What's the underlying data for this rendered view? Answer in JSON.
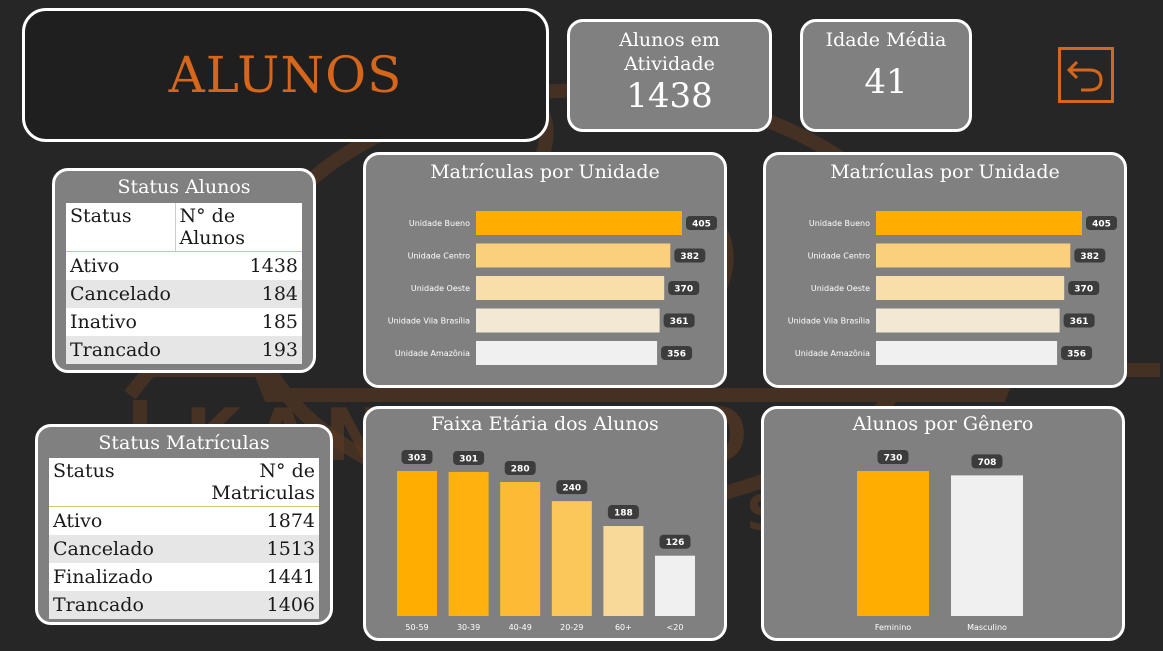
{
  "page": {
    "title": "ALUNOS"
  },
  "kpis": {
    "active_students": {
      "label": "Alunos em Atividade",
      "value": "1438"
    },
    "avg_age": {
      "label": "Idade Média",
      "value": "41"
    }
  },
  "status_alunos": {
    "title": "Status Alunos",
    "headers": [
      "Status",
      "N° de Alunos"
    ],
    "rows": [
      {
        "status": "Ativo",
        "count": "1438"
      },
      {
        "status": "Cancelado",
        "count": "184"
      },
      {
        "status": "Inativo",
        "count": "185"
      },
      {
        "status": "Trancado",
        "count": "193"
      }
    ]
  },
  "status_matriculas": {
    "title": "Status Matrículas",
    "headers": [
      "Status",
      "N° de Matriculas"
    ],
    "rows": [
      {
        "status": "Ativo",
        "count": "1874"
      },
      {
        "status": "Cancelado",
        "count": "1513"
      },
      {
        "status": "Finalizado",
        "count": "1441"
      },
      {
        "status": "Trancado",
        "count": "1406"
      }
    ]
  },
  "chart_data": [
    {
      "type": "bar",
      "orientation": "horizontal",
      "title": "Matrículas por Unidade",
      "categories": [
        "Unidade Bueno",
        "Unidade Centro",
        "Unidade Oeste",
        "Unidade Vila Brasília",
        "Unidade Amazônia"
      ],
      "values": [
        405,
        382,
        370,
        361,
        356
      ],
      "colors": [
        "#ffad00",
        "#fbd07d",
        "#f8dfaa",
        "#f2e8d4",
        "#f0f0f0"
      ]
    },
    {
      "type": "bar",
      "orientation": "horizontal",
      "title": "Matrículas por Unidade",
      "categories": [
        "Unidade Bueno",
        "Unidade Centro",
        "Unidade Oeste",
        "Unidade Vila Brasília",
        "Unidade Amazônia"
      ],
      "values": [
        405,
        382,
        370,
        361,
        356
      ],
      "colors": [
        "#ffad00",
        "#fbd07d",
        "#f8dfaa",
        "#f2e8d4",
        "#f0f0f0"
      ]
    },
    {
      "type": "bar",
      "orientation": "vertical",
      "title": "Faixa Etária dos Alunos",
      "categories": [
        "50-59",
        "30-39",
        "40-49",
        "20-29",
        "60+",
        "<20"
      ],
      "values": [
        303,
        301,
        280,
        240,
        188,
        126
      ],
      "colors": [
        "#ffad00",
        "#ffb20f",
        "#fdbb35",
        "#fbc65a",
        "#f9d99a",
        "#f0f0f0"
      ]
    },
    {
      "type": "bar",
      "orientation": "vertical",
      "title": "Alunos por Gênero",
      "categories": [
        "Feminino",
        "Masculino"
      ],
      "values": [
        730,
        708
      ],
      "colors": [
        "#ffad00",
        "#f0f0f0"
      ]
    }
  ],
  "theme": {
    "accent": "#d5661c",
    "bar_primary": "#ffad00",
    "panel": "#808080"
  },
  "icons": {
    "back": "undo-arrow-icon"
  }
}
